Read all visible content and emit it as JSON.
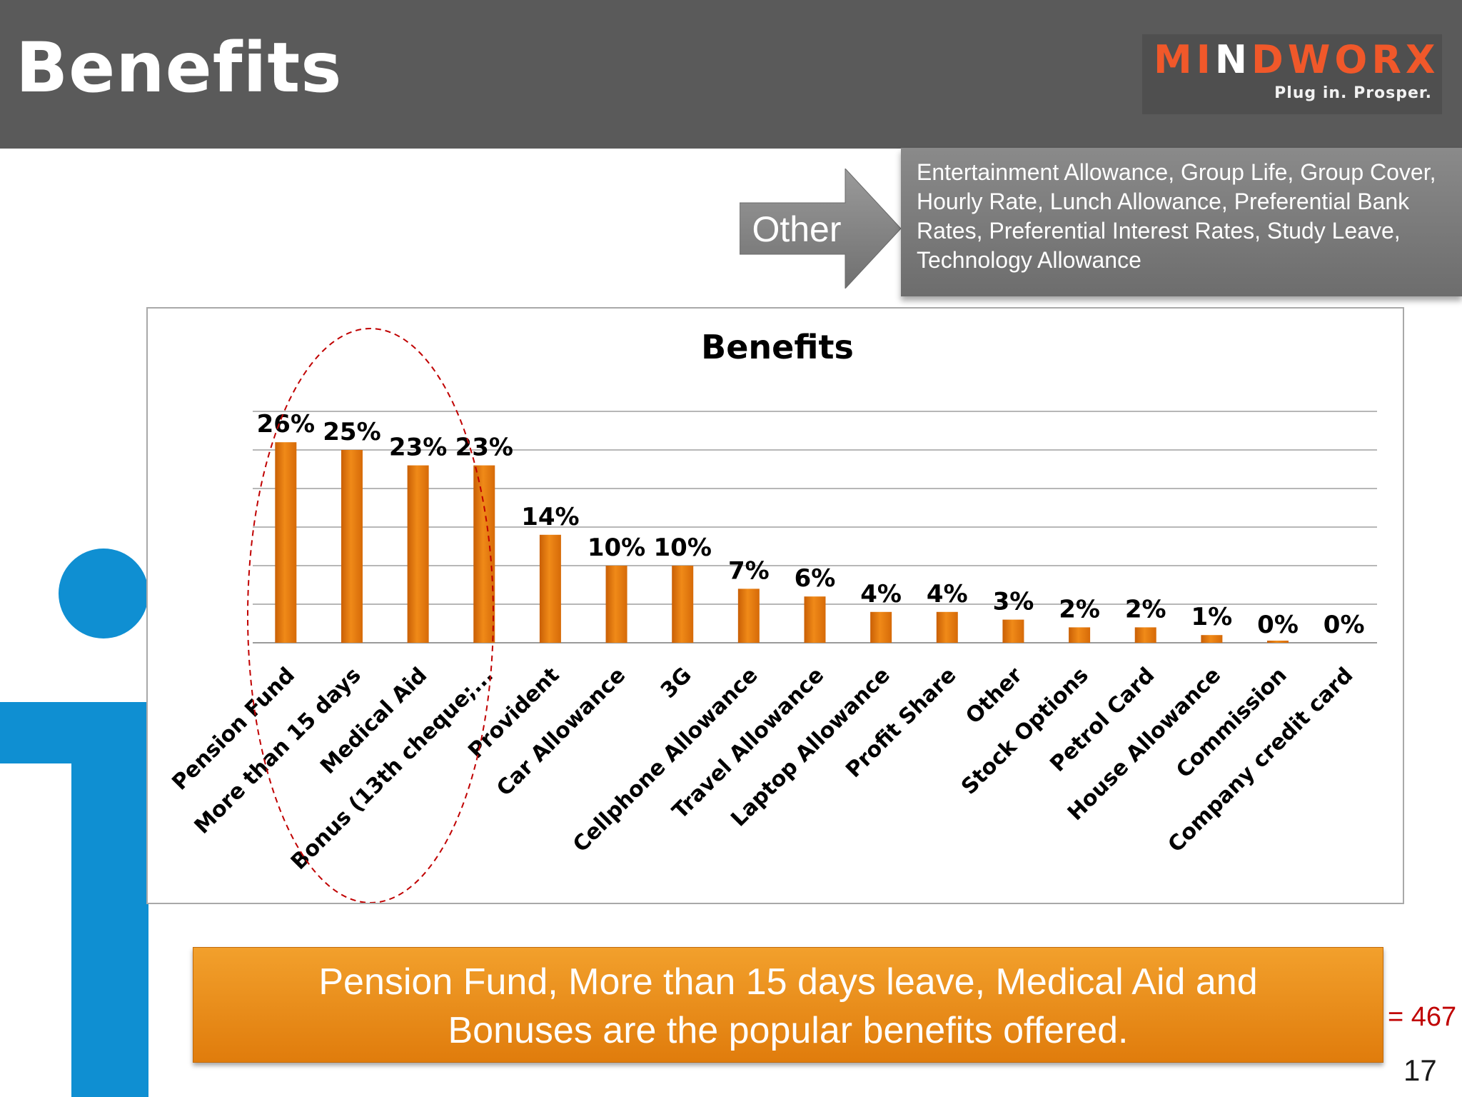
{
  "header": {
    "title": "Benefits"
  },
  "logo": {
    "word_a": "MI",
    "word_n": "N",
    "word_b": "DWORX",
    "tagline": "Plug in. Prosper."
  },
  "other_callout": {
    "label": "Other",
    "text": "Entertainment Allowance, Group Life, Group Cover, Hourly Rate, Lunch Allowance, Preferential Bank Rates, Preferential Interest Rates, Study Leave, Technology Allowance"
  },
  "summary": {
    "line1": "Pension Fund, More than 15 days leave, Medical Aid and",
    "line2": "Bonuses are the popular benefits offered."
  },
  "sample_size": "= 467",
  "page_number": "17",
  "colors": {
    "header": "#5a5a5a",
    "bar": "#e8790e",
    "accent_blue": "#0f8fd2",
    "highlight_ellipse": "#c00000"
  },
  "chart_data": {
    "type": "bar",
    "title": "Benefits",
    "categories": [
      "Pension Fund",
      "More than 15 days",
      "Medical Aid",
      "Bonus (13th cheque;...",
      "Provident",
      "Car Allowance",
      "3G",
      "Cellphone Allowance",
      "Travel Allowance",
      "Laptop Allowance",
      "Profit Share",
      "Other",
      "Stock Options",
      "Petrol Card",
      "House Allowance",
      "Commission",
      "Company credit card"
    ],
    "values": [
      26,
      25,
      23,
      23,
      14,
      10,
      10,
      7,
      6,
      4,
      4,
      3,
      2,
      2,
      1,
      0,
      0
    ],
    "value_labels": [
      "26%",
      "25%",
      "23%",
      "23%",
      "14%",
      "10%",
      "10%",
      "7%",
      "6%",
      "4%",
      "4%",
      "3%",
      "2%",
      "2%",
      "1%",
      "0%",
      "0%"
    ],
    "value_suffix": "%",
    "ylim": [
      0,
      30
    ],
    "gridlines": true,
    "legend": "none",
    "highlight": "dashed ellipse around the first four bars"
  }
}
